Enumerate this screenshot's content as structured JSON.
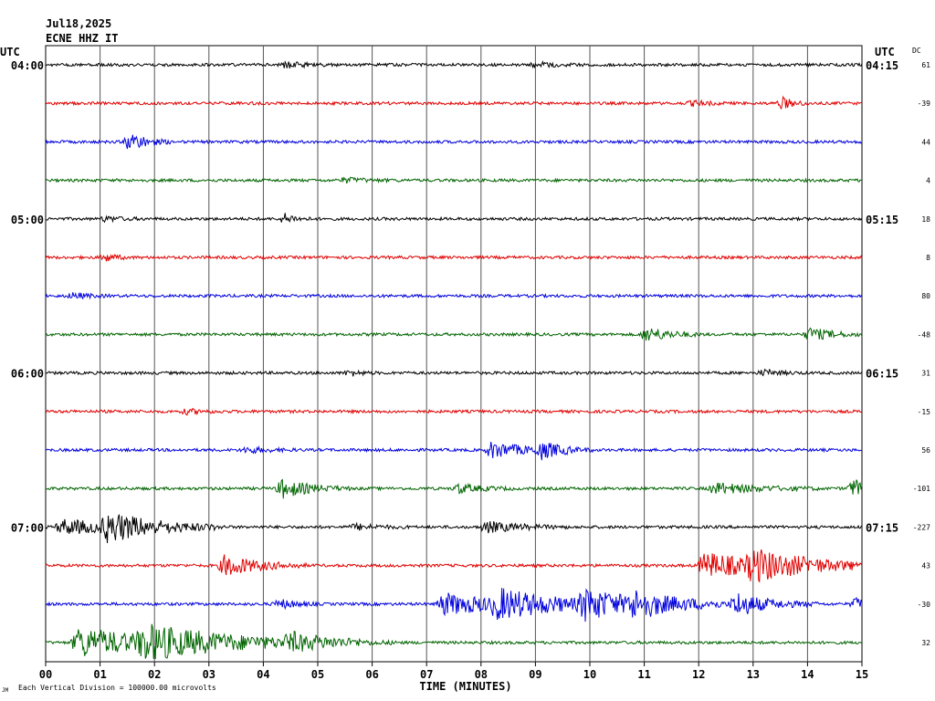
{
  "header": {
    "date": "Jul18,2025",
    "station": "ECNE HHZ IT",
    "utc_left": "UTC",
    "utc_right": "UTC",
    "dc_label": "DC"
  },
  "footer": {
    "mark": "JM",
    "note": "Each Vertical Division = 100000.00 microvolts"
  },
  "chart_data": {
    "type": "line",
    "title": "",
    "xlabel": "TIME (MINUTES)",
    "ylabel": "",
    "xlim": [
      0,
      15
    ],
    "x_ticks": [
      "00",
      "01",
      "02",
      "03",
      "04",
      "05",
      "06",
      "07",
      "08",
      "09",
      "10",
      "11",
      "12",
      "13",
      "14",
      "15"
    ],
    "grid": true,
    "trace_colors": [
      "#000000",
      "#e00000",
      "#0000dd",
      "#006400"
    ],
    "left_time_labels": [
      "04:00",
      "05:00",
      "06:00",
      "07:00"
    ],
    "right_time_labels": [
      "04:15",
      "05:15",
      "06:15",
      "07:15"
    ],
    "time_label_every_n_traces": 4,
    "traces": [
      {
        "dc": "61",
        "events": [
          [
            4.4,
            3,
            0.4
          ],
          [
            9.0,
            2.5,
            0.4
          ]
        ]
      },
      {
        "dc": "-39",
        "events": [
          [
            13.55,
            6,
            0.2
          ],
          [
            11.9,
            2.5,
            0.3
          ]
        ]
      },
      {
        "dc": "44",
        "events": [
          [
            1.55,
            10,
            0.3
          ]
        ]
      },
      {
        "dc": "4",
        "events": [
          [
            5.5,
            2.5,
            0.4
          ]
        ]
      },
      {
        "dc": "18",
        "events": [
          [
            4.4,
            5,
            0.2
          ],
          [
            1.1,
            2.5,
            0.3
          ]
        ]
      },
      {
        "dc": "8",
        "events": [
          [
            1.1,
            4,
            0.2
          ]
        ]
      },
      {
        "dc": "80",
        "events": [
          [
            0.5,
            3,
            0.3
          ]
        ]
      },
      {
        "dc": "-48",
        "events": [
          [
            11.05,
            8,
            0.4
          ],
          [
            14.05,
            7,
            0.4
          ]
        ]
      },
      {
        "dc": "31",
        "events": [
          [
            5.6,
            3,
            0.2
          ],
          [
            13.2,
            3,
            0.3
          ]
        ]
      },
      {
        "dc": "-15",
        "events": [
          [
            2.6,
            2.5,
            0.3
          ]
        ]
      },
      {
        "dc": "56",
        "events": [
          [
            8.2,
            9,
            0.6
          ],
          [
            9.1,
            8,
            0.4
          ],
          [
            3.7,
            3,
            0.4
          ]
        ]
      },
      {
        "dc": "-101",
        "events": [
          [
            4.35,
            10,
            0.5
          ],
          [
            7.6,
            5,
            0.4
          ],
          [
            12.3,
            6,
            0.8
          ],
          [
            14.85,
            9,
            0.5
          ]
        ]
      },
      {
        "dc": "-227",
        "events": [
          [
            0.3,
            8,
            1.2
          ],
          [
            1.15,
            14,
            0.8
          ],
          [
            8.1,
            6,
            0.6
          ],
          [
            5.7,
            3,
            0.4
          ]
        ]
      },
      {
        "dc": "43",
        "events": [
          [
            3.3,
            12,
            0.6
          ],
          [
            12.1,
            14,
            1.2
          ],
          [
            13.0,
            13,
            1.0
          ]
        ]
      },
      {
        "dc": "-30",
        "events": [
          [
            7.3,
            12,
            1.2
          ],
          [
            8.3,
            13,
            1.2
          ],
          [
            9.9,
            14,
            1.0
          ],
          [
            10.8,
            10,
            0.9
          ],
          [
            12.7,
            12,
            0.6
          ],
          [
            4.3,
            5,
            0.3
          ],
          [
            14.9,
            6,
            0.3
          ]
        ]
      },
      {
        "dc": "32",
        "events": [
          [
            0.6,
            16,
            1.6
          ],
          [
            1.8,
            14,
            1.6
          ],
          [
            4.5,
            8,
            0.8
          ]
        ]
      }
    ]
  }
}
